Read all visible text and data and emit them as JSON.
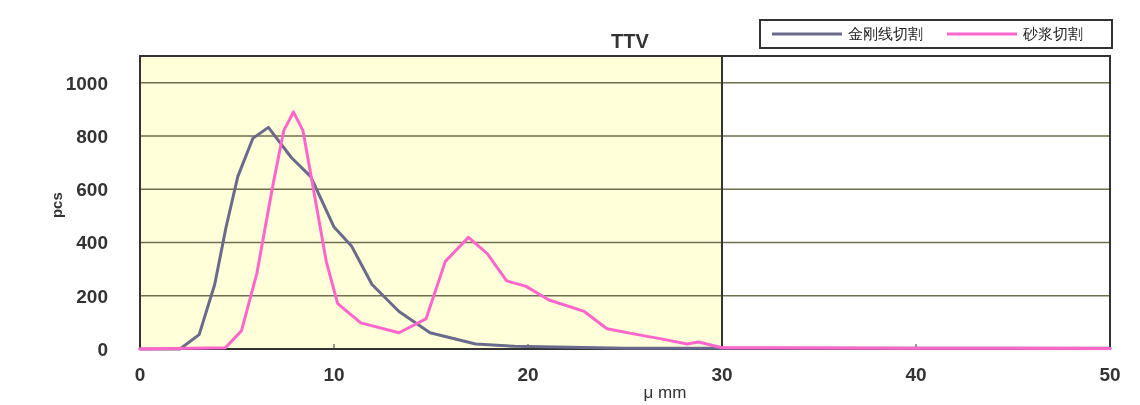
{
  "chart_data": {
    "type": "line",
    "title": "TTV",
    "xlabel": "μ mm",
    "ylabel": "pcs",
    "xlim": [
      0,
      50
    ],
    "xticks": [
      0,
      10,
      20,
      30,
      40,
      50
    ],
    "ylim": [
      0,
      1100
    ],
    "yticks": [
      0,
      200,
      400,
      600,
      800,
      1000
    ],
    "grid": "y",
    "legend": "top right",
    "bands": [
      {
        "axis": "x",
        "from": 0,
        "to": 30,
        "color": "#ffffd9"
      }
    ],
    "ref_lines": [
      {
        "axis": "x",
        "value": 30,
        "color": "#333333"
      }
    ],
    "series": [
      {
        "name": "金刚线切割",
        "color": "#6a6a8c",
        "x": [
          0,
          2.06,
          3.05,
          3.85,
          4.44,
          5.04,
          5.82,
          6.62,
          7.8,
          8.8,
          9.99,
          10.9,
          11.96,
          13.35,
          14.95,
          17.3,
          19.3,
          25,
          30,
          40,
          50
        ],
        "values": [
          0,
          0,
          54,
          242,
          459,
          647,
          791,
          832,
          719,
          647,
          459,
          387,
          242,
          141,
          61,
          19,
          10,
          3,
          3,
          3,
          3
        ]
      },
      {
        "name": "砂浆切割",
        "color": "#ff66cc",
        "x": [
          0,
          4.4,
          5.23,
          6.03,
          6.82,
          7.41,
          7.91,
          8.4,
          9.0,
          9.6,
          10.19,
          11.38,
          13.35,
          14.74,
          15.74,
          16.93,
          17.9,
          18.9,
          19.9,
          21.08,
          22.9,
          24.07,
          25.65,
          26.8,
          28.2,
          28.8,
          30,
          40,
          50
        ],
        "values": [
          0,
          5,
          68,
          286,
          603,
          820,
          890,
          820,
          575,
          329,
          170,
          98,
          61,
          113,
          329,
          419,
          358,
          256,
          235,
          184,
          141,
          76,
          54,
          39,
          19,
          26,
          5,
          3,
          2
        ]
      }
    ]
  }
}
